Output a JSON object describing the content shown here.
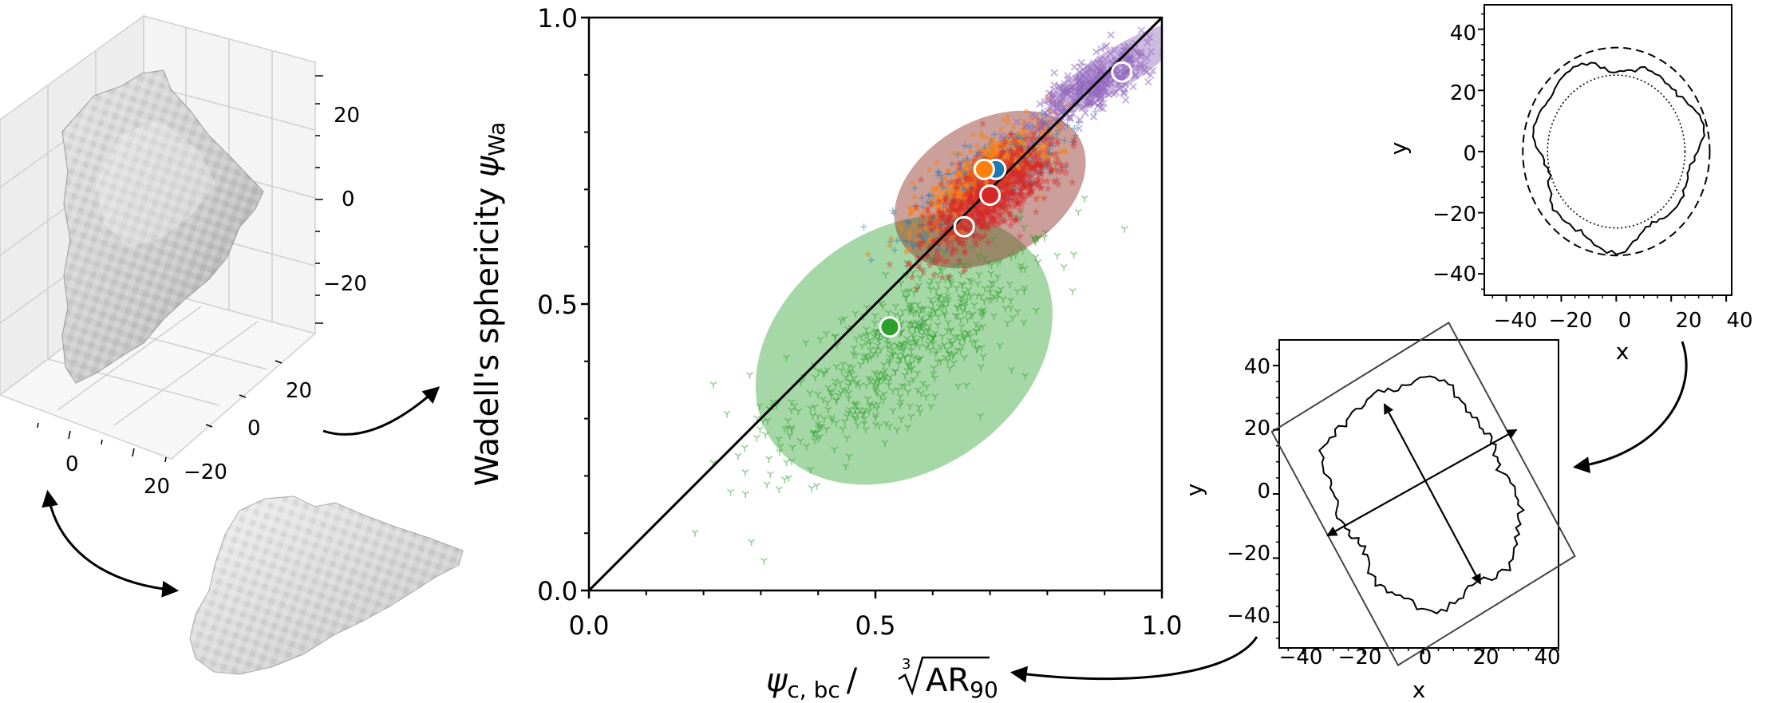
{
  "chart_data": [
    {
      "type": "3d-voxel",
      "axis_ticks": {
        "z": [
          "20",
          "0",
          "−20"
        ],
        "y": [
          "20",
          "0",
          "−20"
        ],
        "x": [
          "0",
          "20"
        ]
      },
      "colors": {
        "grain_light": "#dedede",
        "grain_dark": "#8f8f8f"
      }
    },
    {
      "type": "scatter",
      "xlabel_base": "ψ",
      "xlabel_subscript": "c, bc",
      "xlabel_div": "/",
      "xlabel_root_index": "3",
      "xlabel_radicand": "AR",
      "xlabel_radicand_subscript": "90",
      "ylabel_text": "Wadell's sphericity ",
      "ylabel_symbol": "ψ",
      "ylabel_subscript": "Wa",
      "xlim": [
        0,
        1
      ],
      "ylim": [
        0,
        1
      ],
      "xticks": [
        "0.0",
        "0.5",
        "1.0"
      ],
      "yticks": [
        "0.0",
        "0.5",
        "1.0"
      ],
      "reference_line": {
        "x": [
          0,
          1
        ],
        "y": [
          0,
          1
        ]
      },
      "ellipses": [
        {
          "series": "green",
          "center": [
            0.55,
            0.42
          ],
          "rx": 0.28,
          "ry": 0.21,
          "angle_deg": 35,
          "color": "#2ca02c"
        },
        {
          "series": "red",
          "center": [
            0.7,
            0.7
          ],
          "rx": 0.18,
          "ry": 0.12,
          "angle_deg": 30,
          "color": "#8b2a1e"
        },
        {
          "series": "purple",
          "center": [
            0.92,
            0.91
          ],
          "rx": 0.14,
          "ry": 0.035,
          "angle_deg": 32,
          "color": "#9467bd"
        }
      ],
      "scatter_clouds": [
        {
          "series": "green",
          "marker": "tri",
          "color": "#2ca02c",
          "center": [
            0.55,
            0.42
          ],
          "spread": [
            0.13,
            0.1
          ],
          "n": 600
        },
        {
          "series": "blue",
          "marker": "plus",
          "color": "#1f77b4",
          "center": [
            0.7,
            0.72
          ],
          "spread": [
            0.07,
            0.05
          ],
          "n": 500
        },
        {
          "series": "orange",
          "marker": "dot",
          "color": "#ff7f0e",
          "center": [
            0.69,
            0.72
          ],
          "spread": [
            0.06,
            0.05
          ],
          "n": 700
        },
        {
          "series": "red",
          "marker": "star",
          "color": "#d62728",
          "center": [
            0.7,
            0.69
          ],
          "spread": [
            0.06,
            0.055
          ],
          "n": 900
        },
        {
          "series": "purple",
          "marker": "x",
          "color": "#9467bd",
          "center": [
            0.88,
            0.88
          ],
          "spread": [
            0.06,
            0.035
          ],
          "n": 350
        }
      ],
      "mean_points": [
        {
          "series": "blue",
          "x": 0.71,
          "y": 0.735,
          "color": "#1f77b4"
        },
        {
          "series": "orange",
          "x": 0.69,
          "y": 0.735,
          "color": "#ff7f0e"
        },
        {
          "series": "red",
          "x": 0.7,
          "y": 0.69,
          "color": "#d62728"
        },
        {
          "series": "green",
          "x": 0.525,
          "y": 0.46,
          "color": "#2ca02c"
        },
        {
          "series": "none",
          "x": 0.655,
          "y": 0.635,
          "color": "none"
        },
        {
          "series": "none",
          "x": 0.93,
          "y": 0.905,
          "color": "none"
        }
      ]
    },
    {
      "type": "line",
      "xlabel": "x",
      "ylabel": "y",
      "xlim": [
        -48,
        42
      ],
      "ylim": [
        -47,
        48
      ],
      "xticks": [
        "−40",
        "−20",
        "0",
        "20",
        "40"
      ],
      "yticks": [
        "40",
        "20",
        "0",
        "−20",
        "−40"
      ],
      "circles": [
        {
          "name": "dashed",
          "cx": 0,
          "cy": 0,
          "r": 34
        },
        {
          "name": "dotted",
          "cx": 0,
          "cy": 0,
          "r": 25
        }
      ],
      "contour": "irregular grain outline, mean radius ≈ 30"
    },
    {
      "type": "line",
      "xlabel": "x",
      "ylabel": "y",
      "xlim": [
        -48,
        45
      ],
      "ylim": [
        -48,
        48
      ],
      "xticks": [
        "−40",
        "−20",
        "0",
        "20",
        "40"
      ],
      "yticks": [
        "40",
        "20",
        "0",
        "−20",
        "−40"
      ],
      "bounding_box_angle_deg": 30,
      "bounding_box_half_sizes": [
        34,
        42
      ],
      "axis_arrows": [
        {
          "from": [
            -13,
            28
          ],
          "to": [
            19,
            -28
          ]
        },
        {
          "from": [
            -32,
            -13
          ],
          "to": [
            31,
            20
          ]
        }
      ],
      "contour": "irregular grain outline, rotated rectangle-like"
    }
  ]
}
